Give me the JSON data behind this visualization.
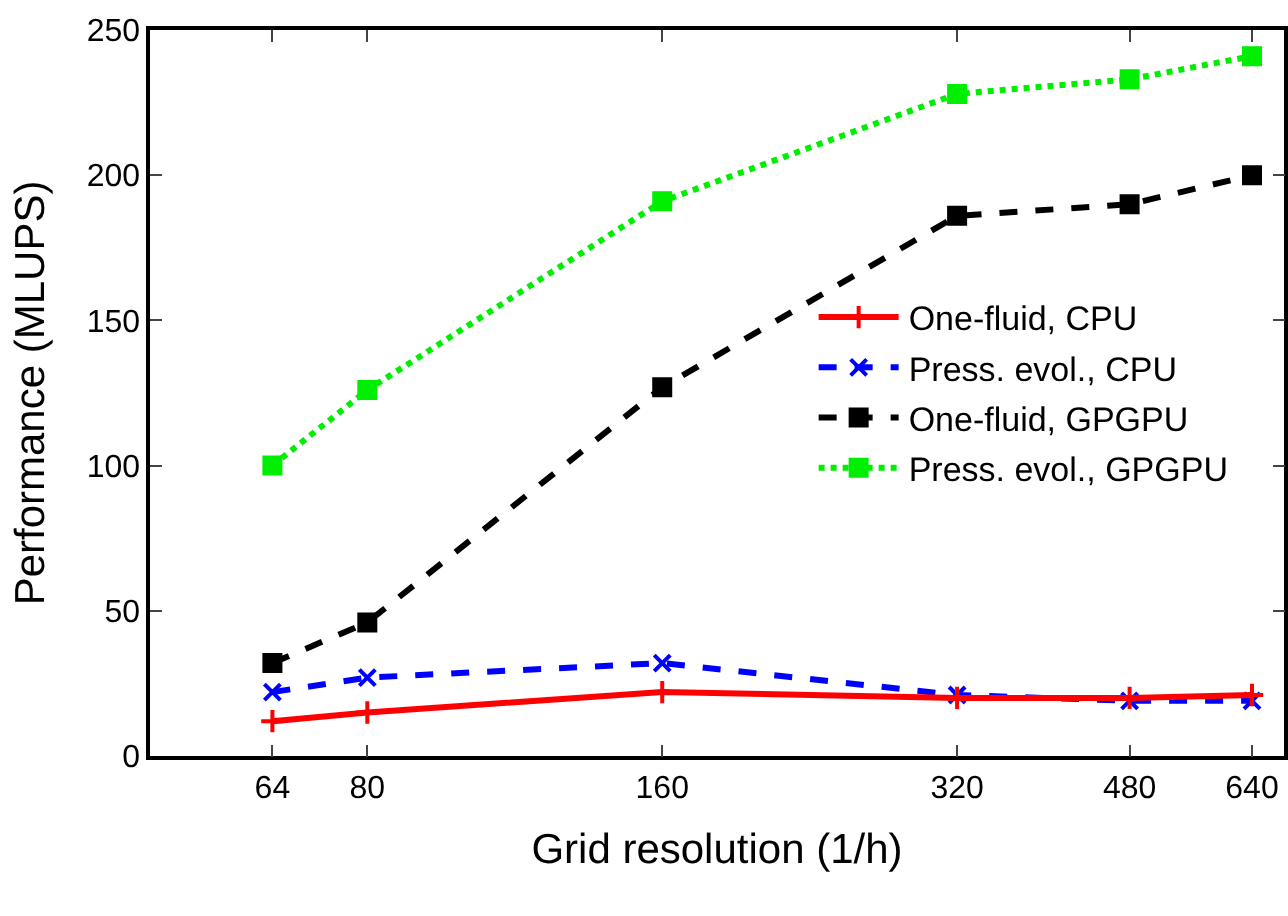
{
  "chart_data": {
    "type": "line",
    "xlabel": "Grid resolution (1/h)",
    "ylabel": "Performance (MLUPS)",
    "x": [
      64,
      80,
      160,
      320,
      480,
      640
    ],
    "log": "x",
    "xlim": [
      48,
      690
    ],
    "xticks": [
      64,
      80,
      160,
      320,
      480,
      640
    ],
    "ylim": [
      0,
      250
    ],
    "yticks": [
      0,
      50,
      100,
      150,
      200,
      250
    ],
    "legend": "right",
    "series": [
      {
        "name": "One-fluid, CPU",
        "color": "#ff0000",
        "values": [
          12,
          15,
          22,
          20,
          20,
          21
        ],
        "marker": "cross",
        "line_style": "solid"
      },
      {
        "name": "Press. evol., CPU",
        "color": "#0000ff",
        "values": [
          22,
          27,
          32,
          21,
          19,
          19
        ],
        "marker": "x",
        "line_style": "dashed"
      },
      {
        "name": "One-fluid, GPGPU",
        "color": "#000000",
        "values": [
          32,
          46,
          127,
          186,
          190,
          200
        ],
        "marker": "square",
        "line_style": "dashed"
      },
      {
        "name": "Press. evol., GPGPU",
        "color": "#00ee00",
        "values": [
          100,
          126,
          191,
          228,
          233,
          241
        ],
        "marker": "square",
        "line_style": "dotted"
      }
    ]
  }
}
